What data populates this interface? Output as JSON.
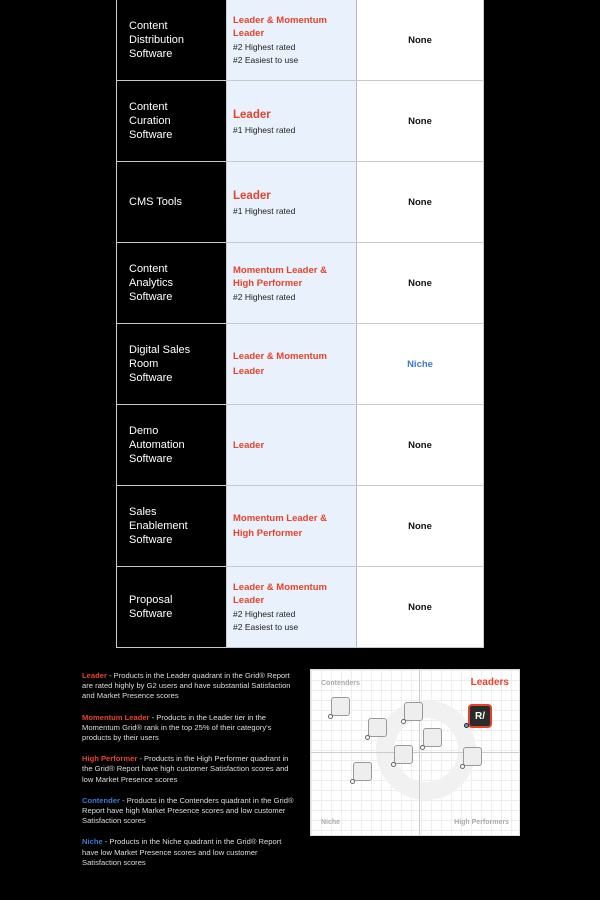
{
  "table": {
    "rows": [
      {
        "category": "Content Distribution Software",
        "badge": "Leader & Momentum Leader",
        "ranks": [
          "#2 Highest rated",
          "#2 Easiest to use"
        ],
        "status": "None"
      },
      {
        "category": "Content Curation Software",
        "badge": "Leader",
        "ranks": [
          "#1 Highest rated"
        ],
        "status": "None"
      },
      {
        "category": "CMS Tools",
        "badge": "Leader",
        "ranks": [
          "#1 Highest rated"
        ],
        "status": "None"
      },
      {
        "category": "Content Analytics Software",
        "badge": "Momentum Leader & High Performer",
        "ranks": [
          "#2 Highest rated"
        ],
        "status": "None"
      },
      {
        "category": "Digital Sales Room Software",
        "badge": "Leader & Momentum Leader",
        "ranks": [],
        "status": "Niche"
      },
      {
        "category": "Demo Automation Software",
        "badge": "Leader",
        "ranks": [],
        "status": "None"
      },
      {
        "category": "Sales Enablement Software",
        "badge": "Momentum Leader & High Performer",
        "ranks": [],
        "status": "None"
      },
      {
        "category": "Proposal Software",
        "badge": "Leader & Momentum Leader",
        "ranks": [
          "#2 Highest rated",
          "#2 Easiest to use"
        ],
        "status": "None"
      }
    ]
  },
  "legend": [
    {
      "term": "Leader",
      "text": " - Products in the Leader quadrant in the Grid® Report are rated highly by G2 users and have substantial Satisfaction and Market Presence scores",
      "color": "#e8432a"
    },
    {
      "term": "Momentum Leader",
      "text": " - Products in the Leader tier in the Momentum Grid® rank in the top 25% of their category's products by their users",
      "color": "#e8432a"
    },
    {
      "term": "High Performer",
      "text": " - Products in the High Performer quadrant in the Grid® Report have high customer Satisfaction scores and low Market Presence scores",
      "color": "#e8432a"
    },
    {
      "term": "Contender",
      "text": " - Products in the Contenders quadrant in the Grid® Report have high Market Presence scores and low customer Satisfaction scores",
      "color": "#3b78d6"
    },
    {
      "term": "Niche",
      "text": " - Products in the Niche quadrant in the Grid® Report have low Market Presence scores and low customer Satisfaction scores",
      "color": "#3b78d6"
    }
  ],
  "grid": {
    "contenders": "Contenders",
    "leaders": "Leaders",
    "niche": "Niche",
    "high_performers": "High Performers",
    "logo": "R/",
    "watermark": "G2"
  },
  "colors": {
    "accent": "#e8432a",
    "niche": "#3b78d6"
  }
}
